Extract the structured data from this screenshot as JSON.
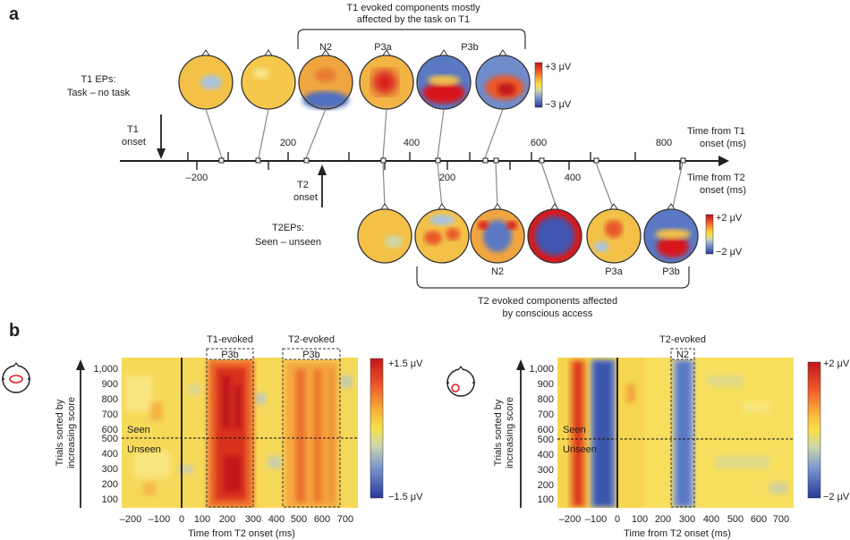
{
  "panel_a": {
    "letter": "a",
    "t1_header": [
      "T1 evoked components mostly",
      "affected by the task on T1"
    ],
    "t1_row_label": [
      "T1 EPs:",
      "Task – no task"
    ],
    "t1_component_labels": [
      "N2",
      "P3a",
      "P3b"
    ],
    "t1_colorbar": {
      "max": "+3 μV",
      "min": "−3 μV"
    },
    "t1_onset": [
      "T1",
      "onset"
    ],
    "t2_onset": [
      "T2",
      "onset"
    ],
    "t1_axis_title": [
      "Time from T1",
      "onset (ms)"
    ],
    "t2_axis_title": [
      "Time from T2",
      "onset (ms)"
    ],
    "t1_ticks": [
      "200",
      "400",
      "600",
      "800"
    ],
    "t2_ticks": [
      "–200",
      "200",
      "400"
    ],
    "t2_row_label": [
      "T2EPs:",
      "Seen – unseen"
    ],
    "t2_component_labels": [
      "N2",
      "P3a",
      "P3b"
    ],
    "t2_colorbar": {
      "max": "+2 μV",
      "min": "−2 μV"
    },
    "t2_footer": [
      "T2 evoked components affected",
      "by conscious access"
    ]
  },
  "panel_b": {
    "letter": "b",
    "left": {
      "ylabel": [
        "Trials sorted by",
        "increasing score"
      ],
      "xlabel": "Time from T2 onset (ms)",
      "yticks": [
        "1,000",
        "900",
        "800",
        "700",
        "600",
        "500",
        "400",
        "300",
        "200",
        "100"
      ],
      "xticks": [
        "–200",
        "–100",
        "0",
        "100",
        "200",
        "300",
        "400",
        "500",
        "600",
        "700"
      ],
      "box1_title": "T1-evoked",
      "box1_label": "P3b",
      "box2_title": "T2-evoked",
      "box2_label": "P3b",
      "seen": "Seen",
      "unseen": "Unseen",
      "colorbar": {
        "max": "+1.5 μV",
        "min": "−1.5 μV"
      }
    },
    "right": {
      "ylabel": [
        "Trials sorted by",
        "increasing score"
      ],
      "xlabel": "Time from T2 onset (ms)",
      "yticks": [
        "1,000",
        "900",
        "800",
        "700",
        "600",
        "500",
        "400",
        "300",
        "200",
        "100"
      ],
      "xticks": [
        "–200",
        "–100",
        "0",
        "100",
        "200",
        "300",
        "400",
        "500",
        "600",
        "700"
      ],
      "box_title": "T2-evoked",
      "box_label": "N2",
      "seen": "Seen",
      "unseen": "Unseen",
      "colorbar": {
        "max": "+2 μV",
        "min": "−2 μV"
      }
    }
  },
  "colors": {
    "red": "#d7191c",
    "yellow": "#f7e04a",
    "blue": "#2c3e9e",
    "orange": "#f39c3a",
    "light_blue": "#a9c4e0"
  }
}
